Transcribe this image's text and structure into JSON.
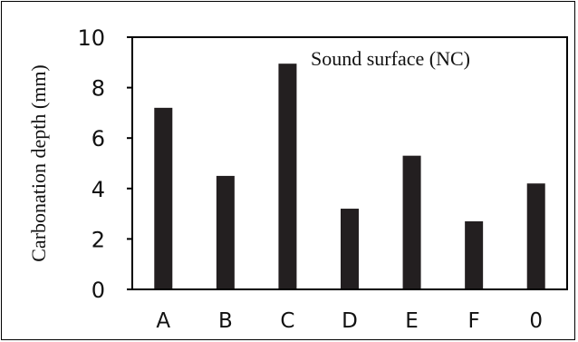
{
  "chart_data": {
    "type": "bar",
    "title": "",
    "annotation": "Sound surface (NC)",
    "xlabel": "",
    "ylabel": "Carbonation depth (mm)",
    "categories": [
      "A",
      "B",
      "C",
      "D",
      "E",
      "F",
      "0"
    ],
    "values": [
      7.2,
      4.5,
      8.95,
      3.2,
      5.3,
      2.7,
      4.2
    ],
    "ylim": [
      0,
      10
    ],
    "yticks": [
      "0",
      "2",
      "4",
      "6",
      "8",
      "10"
    ],
    "grid": false,
    "legend": "none",
    "bar_color": "#231f20"
  }
}
